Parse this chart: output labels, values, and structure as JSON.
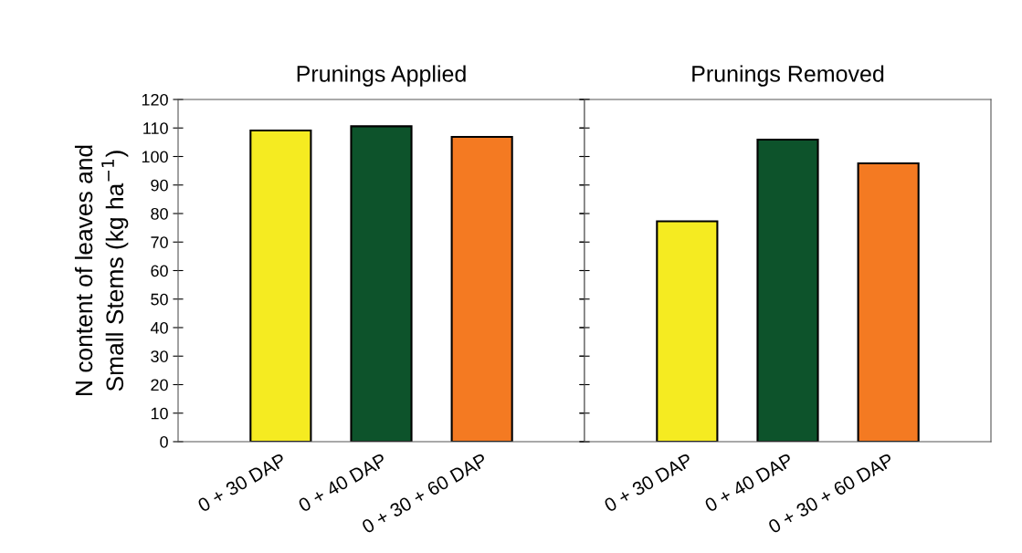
{
  "chart_data": [
    {
      "type": "bar",
      "title": "Prunings Applied",
      "ylabel": "N content of leaves and\nSmall Stems (kg ha$^{−1}$)",
      "categories": [
        "0 + 30 DAP",
        "0 + 40 DAP",
        "0 + 30 + 60 DAP"
      ],
      "values": [
        109.1,
        110.6,
        106.9
      ],
      "colors": [
        "#f5eb21",
        "#0d532b",
        "#f47a22"
      ],
      "ylim": [
        0,
        120
      ],
      "yticks": [
        0,
        10,
        20,
        30,
        40,
        50,
        60,
        70,
        80,
        90,
        100,
        110,
        120
      ],
      "grid": false,
      "legend": false
    },
    {
      "type": "bar",
      "title": "Prunings Removed",
      "categories": [
        "0 + 30 DAP",
        "0 + 40 DAP",
        "0 + 30 + 60 DAP"
      ],
      "values": [
        77.3,
        105.9,
        97.6
      ],
      "colors": [
        "#f5eb21",
        "#0d532b",
        "#f47a22"
      ],
      "ylim": [
        0,
        120
      ],
      "yticks": [
        0,
        10,
        20,
        30,
        40,
        50,
        60,
        70,
        80,
        90,
        100,
        110,
        120
      ],
      "tick_labels": "x",
      "grid": false,
      "legend": false
    }
  ]
}
